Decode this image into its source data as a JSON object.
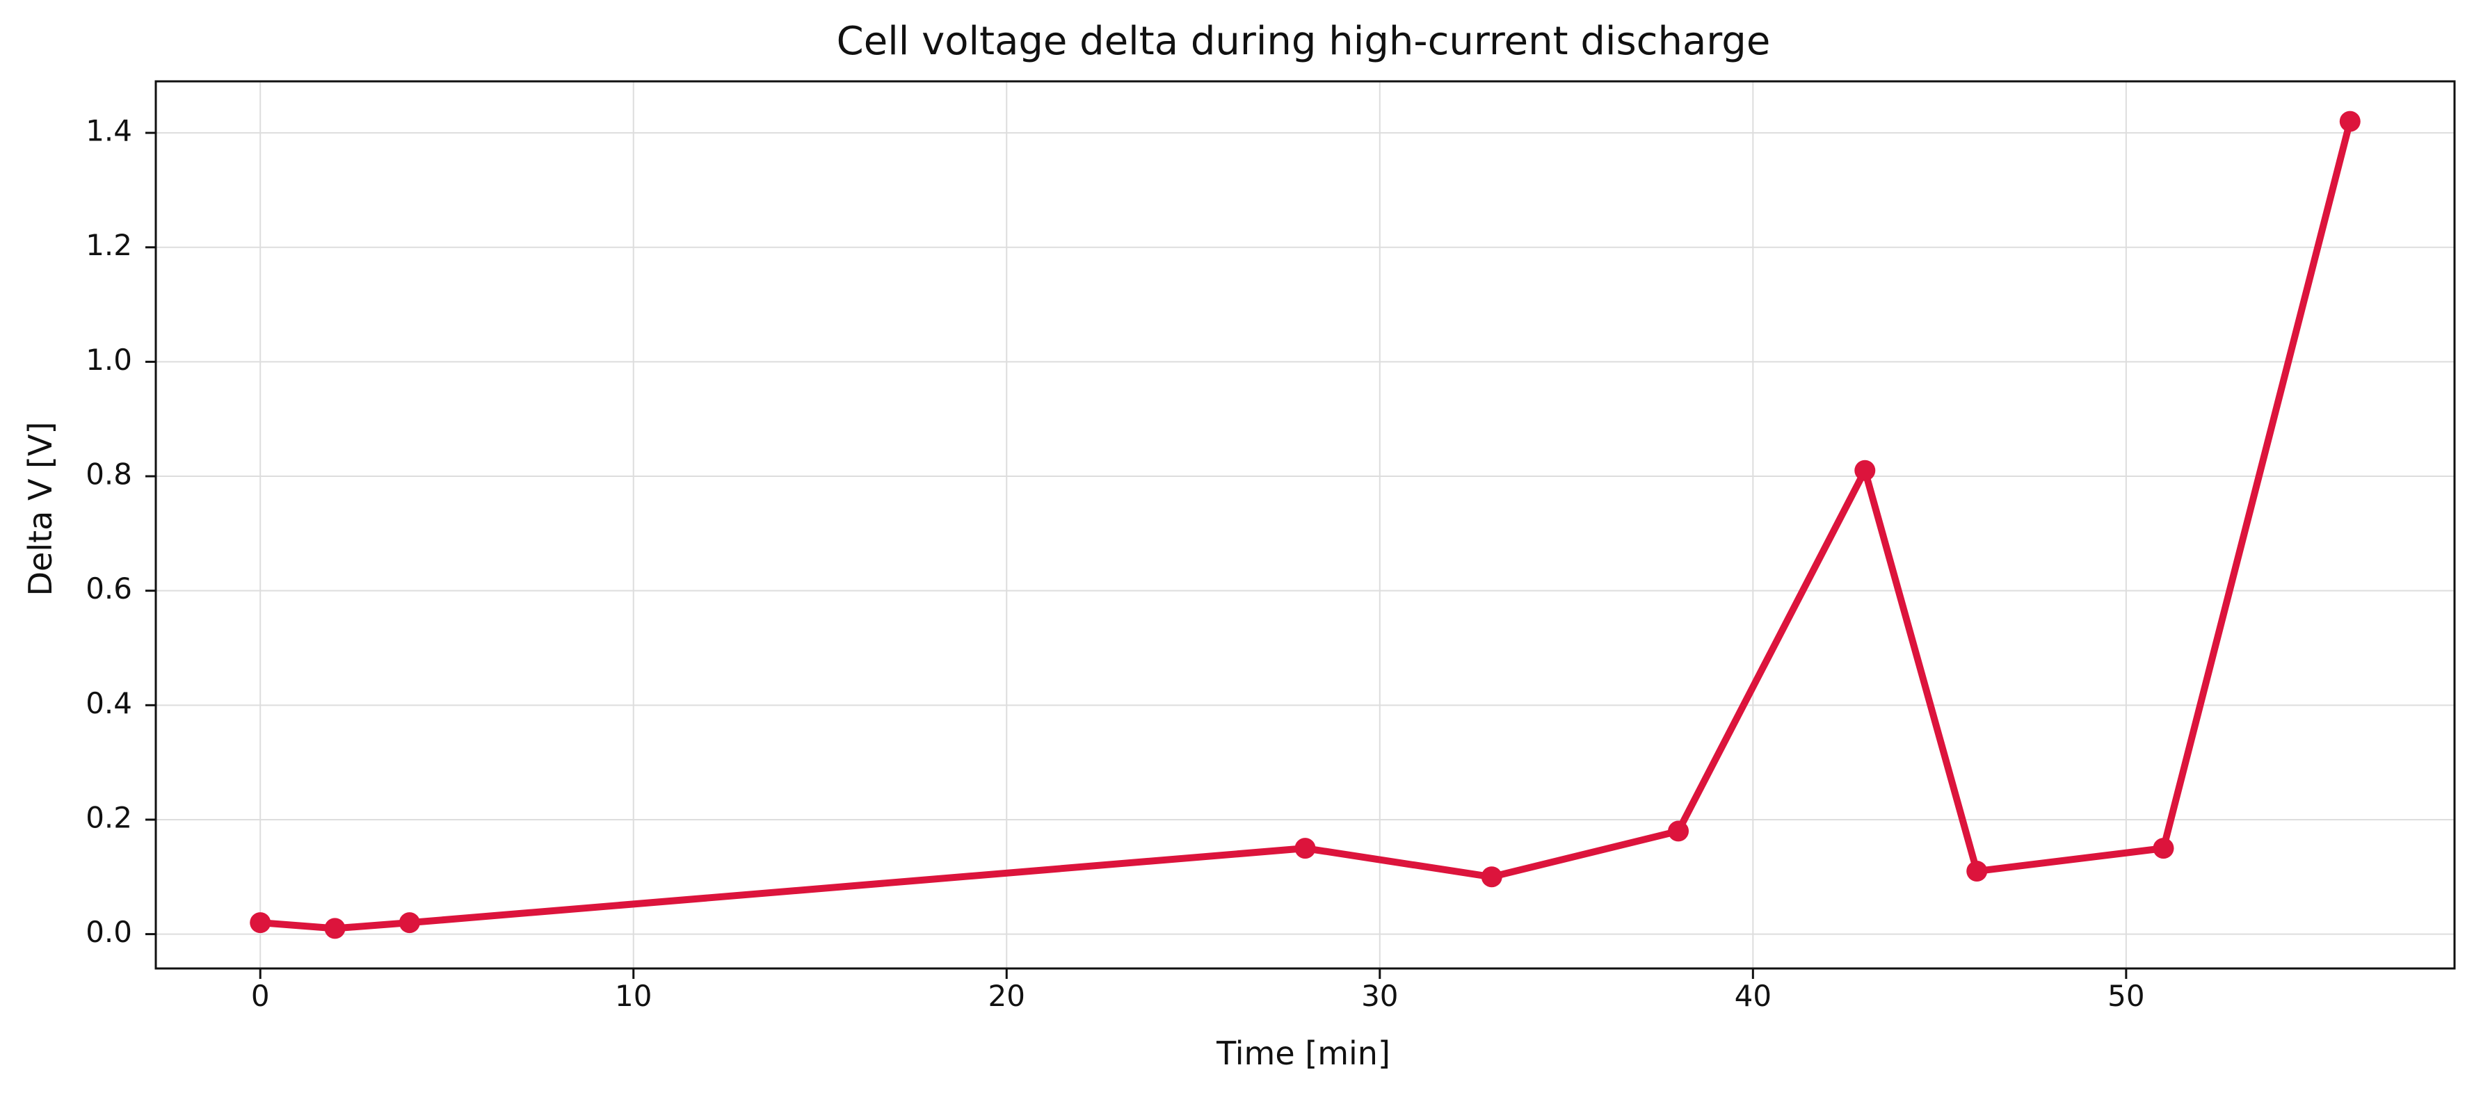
{
  "chart_data": {
    "type": "line",
    "title": "Cell voltage delta during high-current discharge",
    "xlabel": "Time [min]",
    "ylabel": "Delta V [V]",
    "xlim": [
      -2.8,
      58.8
    ],
    "ylim": [
      -0.06,
      1.49
    ],
    "x_ticks": [
      0,
      10,
      20,
      30,
      40,
      50
    ],
    "y_ticks": [
      0.0,
      0.2,
      0.4,
      0.6,
      0.8,
      1.0,
      1.2,
      1.4
    ],
    "x_tick_labels": [
      "0",
      "10",
      "20",
      "30",
      "40",
      "50"
    ],
    "y_tick_labels": [
      "0.0",
      "0.2",
      "0.4",
      "0.6",
      "0.8",
      "1.0",
      "1.2",
      "1.4"
    ],
    "grid": true,
    "legend": "none",
    "series": [
      {
        "color": "#dc143c",
        "x": [
          0,
          2,
          4,
          28,
          33,
          38,
          43,
          46,
          51,
          56
        ],
        "values": [
          0.02,
          0.01,
          0.02,
          0.15,
          0.1,
          0.18,
          0.81,
          0.11,
          0.15,
          1.42
        ]
      }
    ]
  }
}
